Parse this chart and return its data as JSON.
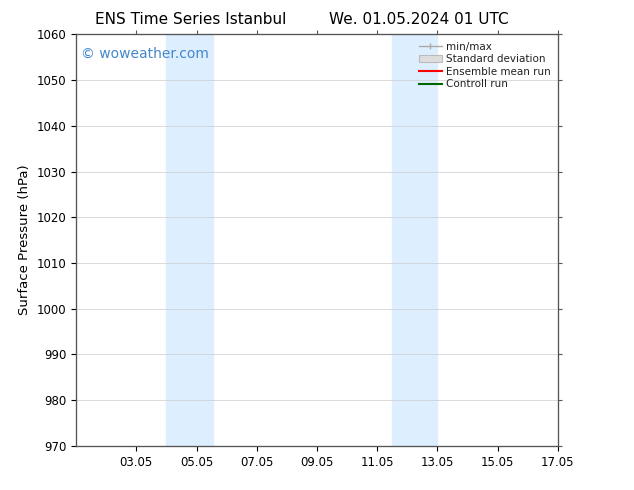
{
  "title_left": "ENS Time Series Istanbul",
  "title_right": "We. 01.05.2024 01 UTC",
  "ylabel": "Surface Pressure (hPa)",
  "ylim": [
    970,
    1060
  ],
  "yticks": [
    970,
    980,
    990,
    1000,
    1010,
    1020,
    1030,
    1040,
    1050,
    1060
  ],
  "xlim_start": 1.05,
  "xlim_end": 17.05,
  "xtick_labels": [
    "03.05",
    "05.05",
    "07.05",
    "09.05",
    "11.05",
    "13.05",
    "15.05",
    "17.05"
  ],
  "xtick_positions": [
    3.05,
    5.05,
    7.05,
    9.05,
    11.05,
    13.05,
    15.05,
    17.05
  ],
  "shaded_bands": [
    {
      "x_start": 4.05,
      "x_end": 5.6
    },
    {
      "x_start": 11.55,
      "x_end": 13.05
    }
  ],
  "shade_color": "#ddeeff",
  "background_color": "#ffffff",
  "plot_bg_color": "#ffffff",
  "watermark_text": "© woweather.com",
  "watermark_color": "#4488cc",
  "legend_items": [
    {
      "label": "min/max",
      "color": "#aaaaaa",
      "style": "errorbar"
    },
    {
      "label": "Standard deviation",
      "color": "#cccccc",
      "style": "band"
    },
    {
      "label": "Ensemble mean run",
      "color": "#ff0000",
      "style": "line"
    },
    {
      "label": "Controll run",
      "color": "#008800",
      "style": "line"
    }
  ],
  "tick_fontsize": 8.5,
  "label_fontsize": 9.5,
  "title_fontsize": 11,
  "watermark_fontsize": 10
}
